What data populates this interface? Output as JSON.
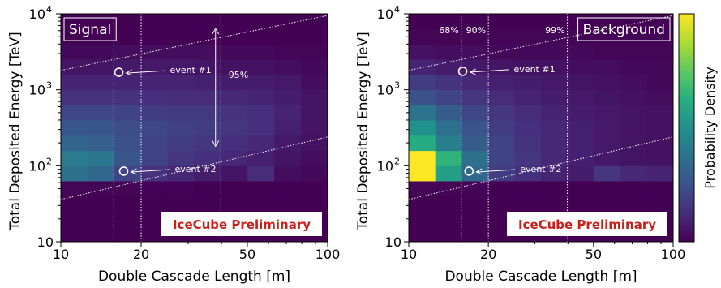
{
  "colors": {
    "cmap": [
      "#440154",
      "#472d7b",
      "#3b528b",
      "#2c728e",
      "#21918c",
      "#28ae80",
      "#5ec962",
      "#addc30",
      "#fde725"
    ],
    "watermark": "#c8211a",
    "overlay": "#ffffff"
  },
  "colorbar_label": "Probability Density",
  "chart_data": [
    {
      "type": "heatmap",
      "title": "Signal",
      "xlabel": "Double Cascade Length [m]",
      "ylabel": "Total Deposited Energy [TeV]",
      "x_scale": "log",
      "y_scale": "log",
      "xlim": [
        10,
        100
      ],
      "ylim": [
        10,
        10000
      ],
      "x_ticks": [
        {
          "v": 10,
          "label": "10"
        },
        {
          "v": 20,
          "label": "20"
        },
        {
          "v": 50,
          "label": "50"
        },
        {
          "v": 100,
          "label": "100"
        }
      ],
      "y_ticks": [
        {
          "v": 10,
          "label": "10",
          "exp": ""
        },
        {
          "v": 100,
          "label": "10",
          "exp": "2"
        },
        {
          "v": 1000,
          "label": "10",
          "exp": "3"
        },
        {
          "v": 10000,
          "label": "10",
          "exp": "4"
        }
      ],
      "x_edges": [
        10,
        12.6,
        15.8,
        20,
        25.1,
        31.6,
        39.8,
        50.1,
        63.1,
        79.4,
        100
      ],
      "y_edges": [
        10,
        15.8,
        25.1,
        39.8,
        63.1,
        100,
        158,
        251,
        398,
        631,
        1000,
        1585,
        2512,
        3981,
        6310,
        10000
      ],
      "z": [
        [
          0,
          0,
          0,
          0,
          0,
          0,
          0,
          0,
          0,
          0
        ],
        [
          0,
          0,
          0,
          0,
          0,
          0,
          0,
          0,
          0,
          0
        ],
        [
          0,
          0,
          0,
          0,
          0,
          0,
          0,
          0,
          0,
          0
        ],
        [
          0.1,
          0.1,
          0.1,
          0.05,
          0.05,
          0,
          0,
          0,
          0,
          0
        ],
        [
          3.3,
          3.0,
          1.8,
          1.3,
          1.0,
          0.7,
          0.5,
          1.1,
          0.3,
          0.2
        ],
        [
          3.7,
          3.5,
          2.4,
          1.8,
          1.4,
          1.2,
          1.0,
          0.8,
          0.5,
          0.3
        ],
        [
          2.9,
          2.7,
          2.2,
          1.8,
          1.6,
          1.4,
          1.2,
          1.0,
          0.6,
          0.4
        ],
        [
          2.4,
          2.4,
          2.1,
          1.9,
          1.7,
          1.6,
          1.4,
          1.2,
          0.8,
          0.5
        ],
        [
          1.9,
          1.9,
          1.8,
          1.6,
          1.5,
          1.5,
          1.3,
          1.2,
          0.9,
          0.5
        ],
        [
          1.3,
          1.3,
          1.3,
          1.2,
          1.1,
          1.1,
          1.0,
          0.9,
          0.7,
          0.5
        ],
        [
          0.9,
          0.9,
          0.9,
          0.9,
          0.9,
          0.8,
          0.7,
          0.7,
          0.6,
          0.3
        ],
        [
          0.5,
          0.5,
          0.6,
          0.6,
          0.6,
          0.5,
          0.4,
          0.4,
          0.3,
          0.2
        ],
        [
          0.2,
          0.2,
          0.3,
          0.3,
          0.3,
          0.3,
          0.2,
          0.2,
          0.1,
          0.1
        ],
        [
          0,
          0,
          0,
          0,
          0,
          0,
          0,
          0,
          0,
          0
        ],
        [
          0,
          0,
          0,
          0,
          0,
          0,
          0,
          0,
          0,
          0
        ]
      ],
      "zlim": [
        0,
        9
      ],
      "events": [
        {
          "label": "event #1",
          "x": 16.5,
          "y": 1700
        },
        {
          "label": "event #2",
          "x": 17.2,
          "y": 85
        }
      ],
      "vlines": [
        15.8,
        20,
        39.8
      ],
      "contour_lines": [
        {
          "x": [
            10,
            100
          ],
          "y": [
            1800,
            9500
          ]
        },
        {
          "x": [
            10,
            100
          ],
          "y": [
            36,
            240
          ]
        }
      ],
      "range_arrow": {
        "label": "95%",
        "x": 38,
        "y_from": 180,
        "y_to": 6400
      },
      "watermark": "IceCube Preliminary"
    },
    {
      "type": "heatmap",
      "title": "Background",
      "xlabel": "Double Cascade Length [m]",
      "ylabel": "Total Deposited Energy [TeV]",
      "x_scale": "log",
      "y_scale": "log",
      "xlim": [
        10,
        100
      ],
      "ylim": [
        10,
        10000
      ],
      "x_ticks": [
        {
          "v": 10,
          "label": "10"
        },
        {
          "v": 20,
          "label": "20"
        },
        {
          "v": 50,
          "label": "50"
        },
        {
          "v": 100,
          "label": "100"
        }
      ],
      "y_ticks": [
        {
          "v": 10,
          "label": "10",
          "exp": ""
        },
        {
          "v": 100,
          "label": "10",
          "exp": "2"
        },
        {
          "v": 1000,
          "label": "10",
          "exp": "3"
        },
        {
          "v": 10000,
          "label": "10",
          "exp": "4"
        }
      ],
      "x_edges": [
        10,
        12.6,
        15.8,
        20,
        25.1,
        31.6,
        39.8,
        50.1,
        63.1,
        79.4,
        100
      ],
      "y_edges": [
        10,
        15.8,
        25.1,
        39.8,
        63.1,
        100,
        158,
        251,
        398,
        631,
        1000,
        1585,
        2512,
        3981,
        6310,
        10000
      ],
      "z": [
        [
          0,
          0,
          0,
          0,
          0,
          0,
          0,
          0,
          0,
          0
        ],
        [
          0,
          0,
          0,
          0,
          0,
          0,
          0,
          0,
          0,
          0
        ],
        [
          0,
          0,
          0,
          0,
          0,
          0,
          0,
          0,
          0,
          0
        ],
        [
          0.1,
          0.1,
          0.05,
          0,
          0,
          0,
          0,
          0,
          0,
          0
        ],
        [
          9.0,
          5.0,
          3.0,
          1.6,
          1.2,
          0.9,
          0.7,
          1.4,
          1.0,
          0.9
        ],
        [
          9.0,
          5.8,
          3.3,
          1.8,
          1.4,
          1.0,
          0.8,
          0.6,
          0.5,
          0.4
        ],
        [
          5.5,
          3.8,
          2.6,
          1.8,
          1.3,
          1.0,
          0.8,
          0.6,
          0.5,
          0.4
        ],
        [
          4.5,
          3.3,
          2.3,
          1.6,
          1.2,
          1.0,
          0.8,
          0.6,
          0.5,
          0.4
        ],
        [
          3.4,
          2.6,
          1.9,
          1.4,
          1.1,
          0.9,
          0.7,
          0.6,
          0.5,
          0.4
        ],
        [
          2.2,
          1.8,
          1.4,
          1.1,
          0.9,
          0.7,
          0.6,
          0.5,
          0.4,
          0.3
        ],
        [
          1.6,
          1.3,
          1.0,
          0.8,
          0.7,
          0.6,
          0.5,
          0.4,
          0.3,
          0.2
        ],
        [
          0.9,
          0.7,
          0.6,
          0.5,
          0.4,
          0.4,
          0.3,
          0.3,
          0.2,
          0.2
        ],
        [
          0.4,
          0.3,
          0.3,
          0.2,
          0.2,
          0.2,
          0.2,
          0.1,
          0.1,
          0.1
        ],
        [
          0.1,
          0.1,
          0.1,
          0.1,
          0.1,
          0.1,
          0.1,
          0.05,
          0.05,
          0.05
        ],
        [
          0,
          0,
          0,
          0,
          0,
          0,
          0,
          0,
          0,
          0
        ]
      ],
      "zlim": [
        0,
        9
      ],
      "events": [
        {
          "label": "event #1",
          "x": 16.0,
          "y": 1750
        },
        {
          "label": "event #2",
          "x": 16.9,
          "y": 85
        }
      ],
      "vlines": [
        15.8,
        20,
        39.8
      ],
      "vline_labels": [
        {
          "label": "68%",
          "x": 15.8
        },
        {
          "label": "90%",
          "x": 20
        },
        {
          "label": "99%",
          "x": 39.8
        }
      ],
      "contour_lines": [
        {
          "x": [
            10,
            100
          ],
          "y": [
            1800,
            9500
          ]
        },
        {
          "x": [
            10,
            100
          ],
          "y": [
            36,
            240
          ]
        }
      ],
      "watermark": "IceCube Preliminary"
    }
  ]
}
